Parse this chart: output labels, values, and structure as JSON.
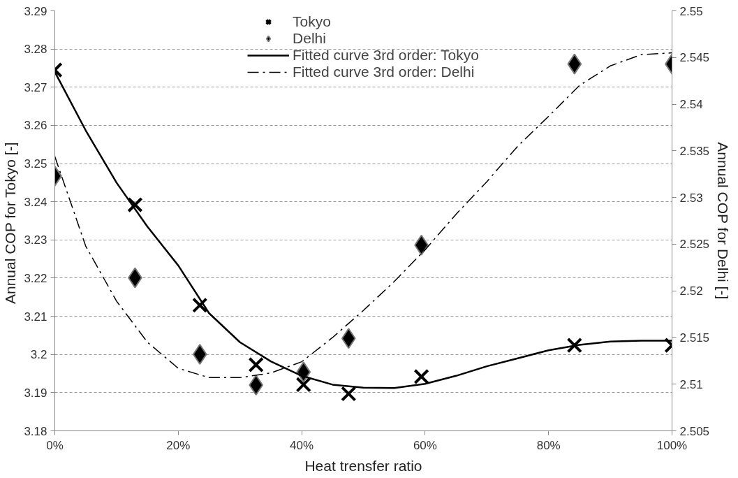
{
  "chart_data": {
    "type": "scatter",
    "xlabel": "Heat trensfer ratio",
    "ylabel": "Annual COP for Tokyo  [-]",
    "y2label": "Annual COP for Delhi [-]",
    "xlim": [
      0,
      100
    ],
    "xticks": [
      {
        "value": 0,
        "label": "0%"
      },
      {
        "value": 20,
        "label": "20%"
      },
      {
        "value": 40,
        "label": "40%"
      },
      {
        "value": 60,
        "label": "60%"
      },
      {
        "value": 80,
        "label": "80%"
      },
      {
        "value": 100,
        "label": "100%"
      }
    ],
    "ylim": [
      3.18,
      3.29
    ],
    "yticks": [
      3.18,
      3.19,
      3.2,
      3.21,
      3.22,
      3.23,
      3.24,
      3.25,
      3.26,
      3.27,
      3.28,
      3.29
    ],
    "y2lim": [
      2.505,
      2.55
    ],
    "y2ticks": [
      2.505,
      2.51,
      2.515,
      2.52,
      2.525,
      2.53,
      2.535,
      2.54,
      2.545,
      2.55
    ],
    "grid": "y",
    "legend": "top",
    "series": [
      {
        "name": "Tokyo",
        "marker": "cross",
        "color": "#000000",
        "x": [
          0,
          13,
          23.5,
          32.6,
          40.3,
          47.6,
          59.4,
          84.2,
          100
        ],
        "values": [
          3.2745,
          3.2392,
          3.2129,
          3.1973,
          3.1921,
          3.1897,
          3.1942,
          3.2024,
          3.2024
        ]
      },
      {
        "name": "Delhi",
        "marker": "diamond",
        "color": "#000000",
        "axis": "y2",
        "x": [
          0,
          13,
          23.5,
          32.6,
          40.3,
          47.6,
          59.4,
          84.2,
          100
        ],
        "values": [
          2.5323,
          2.5214,
          2.5132,
          2.5099,
          2.5113,
          2.5149,
          2.5249,
          2.5443,
          2.5443
        ]
      },
      {
        "name": "Fitted curve 3rd order: Tokyo",
        "type": "line",
        "line_style": "solid",
        "color": "#000000",
        "x": [
          0,
          5,
          10,
          15,
          20,
          25,
          30,
          35,
          40,
          45,
          50,
          55,
          60,
          65,
          70,
          75,
          80,
          85,
          90,
          95,
          100
        ],
        "values": [
          3.274,
          3.2587,
          3.245,
          3.2335,
          3.2233,
          3.2108,
          3.2032,
          3.1982,
          3.1944,
          3.1921,
          3.1913,
          3.1912,
          3.1923,
          3.1944,
          3.1969,
          3.199,
          3.2011,
          3.2025,
          3.2034,
          3.2036,
          3.2036
        ]
      },
      {
        "name": "Fitted curve 3rd order: Delhi",
        "type": "line",
        "line_style": "dashdot",
        "color": "#000000",
        "axis": "y2",
        "x": [
          0,
          5,
          10,
          15,
          20,
          25,
          30,
          35,
          40,
          45,
          50,
          55,
          60,
          65,
          70,
          75,
          80,
          85,
          90,
          95,
          100
        ],
        "values": [
          2.5344,
          2.5248,
          2.5189,
          2.5145,
          2.5117,
          2.5107,
          2.5107,
          2.5112,
          2.5124,
          2.515,
          2.5179,
          2.521,
          2.5244,
          2.5282,
          2.5317,
          2.5355,
          2.5387,
          2.542,
          2.5441,
          2.5453,
          2.5455
        ]
      }
    ]
  }
}
